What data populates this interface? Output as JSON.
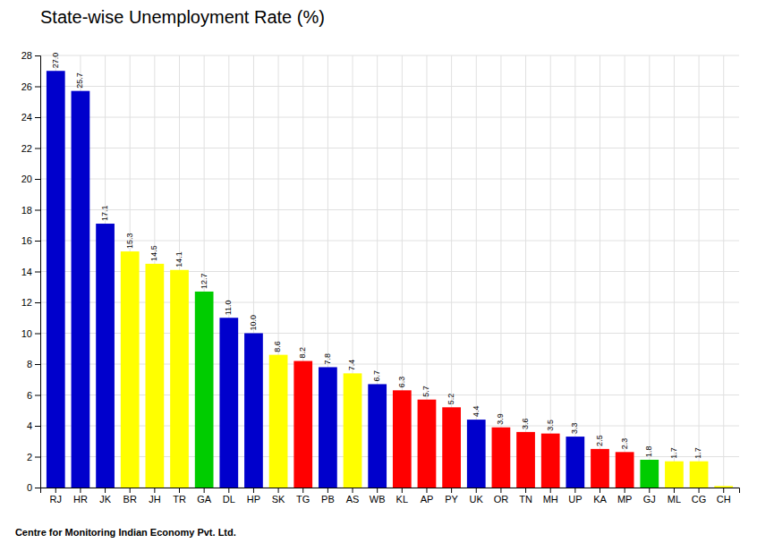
{
  "chart_data": {
    "type": "bar",
    "title": "State-wise Unemployment Rate (%)",
    "annotations": [
      "Centre for Monitoring Indian Economy Pvt. Ltd."
    ],
    "categories": [
      "RJ",
      "HR",
      "JK",
      "BR",
      "JH",
      "TR",
      "GA",
      "DL",
      "HP",
      "SK",
      "TG",
      "PB",
      "AS",
      "WB",
      "KL",
      "AP",
      "PY",
      "UK",
      "OR",
      "TN",
      "MH",
      "UP",
      "KA",
      "MP",
      "GJ",
      "ML",
      "CG",
      "CH"
    ],
    "values": [
      27.0,
      25.7,
      17.1,
      15.3,
      14.5,
      14.1,
      12.7,
      11.0,
      10.0,
      8.6,
      8.2,
      7.8,
      7.4,
      6.7,
      6.3,
      5.7,
      5.2,
      4.4,
      3.9,
      3.6,
      3.5,
      3.3,
      2.5,
      2.3,
      1.8,
      1.7,
      1.7,
      0.1
    ],
    "value_labels": [
      "27.0",
      "25.7",
      "17.1",
      "15.3",
      "14.5",
      "14.1",
      "12.7",
      "11.0",
      "10.0",
      "8.6",
      "8.2",
      "7.8",
      "7.4",
      "6.7",
      "6.3",
      "5.7",
      "5.2",
      "4.4",
      "3.9",
      "3.6",
      "3.5",
      "3.3",
      "2.5",
      "2.3",
      "1.8",
      "1.7",
      "1.7",
      null
    ],
    "colors": [
      "#0000cc",
      "#0000cc",
      "#0000cc",
      "#ffff00",
      "#ffff00",
      "#ffff00",
      "#00cc00",
      "#0000cc",
      "#0000cc",
      "#ffff00",
      "#ff0000",
      "#0000cc",
      "#ffff00",
      "#0000cc",
      "#ff0000",
      "#ff0000",
      "#ff0000",
      "#0000cc",
      "#ff0000",
      "#ff0000",
      "#ff0000",
      "#0000cc",
      "#ff0000",
      "#ff0000",
      "#00cc00",
      "#ffff00",
      "#ffff00",
      "#ffff00"
    ],
    "ylim": [
      0,
      28
    ],
    "yticks": [
      0,
      2,
      4,
      6,
      8,
      10,
      12,
      14,
      16,
      18,
      20,
      22,
      24,
      26,
      28
    ],
    "grid": true,
    "data_labels": true
  }
}
